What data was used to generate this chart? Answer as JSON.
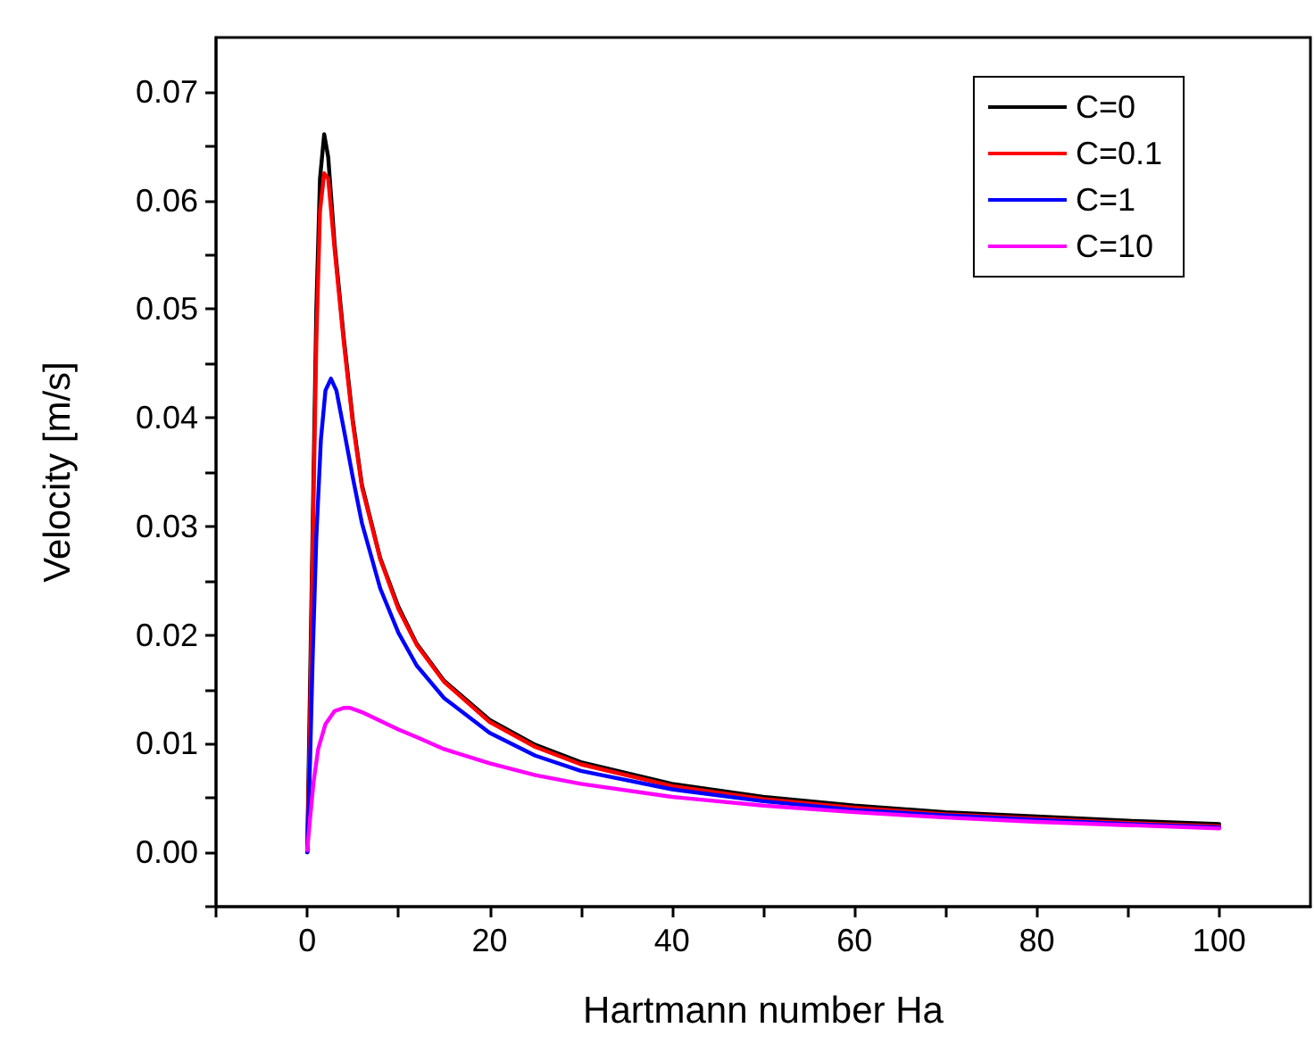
{
  "chart_data": {
    "type": "line",
    "xlabel": "Hartmann number Ha",
    "ylabel": "Velocity [m/s]",
    "xlim": [
      -10,
      110
    ],
    "ylim": [
      -0.005,
      0.075
    ],
    "xticks": [
      {
        "value": -10,
        "label": null
      },
      0,
      {
        "value": 10,
        "label": null
      },
      20,
      {
        "value": 30,
        "label": null
      },
      40,
      {
        "value": 50,
        "label": null
      },
      60,
      {
        "value": 70,
        "label": null
      },
      80,
      {
        "value": 90,
        "label": null
      },
      100
    ],
    "yticks": [
      {
        "value": -0.005,
        "label": null
      },
      {
        "value": 0,
        "label": "0.00"
      },
      {
        "value": 0.005,
        "label": null
      },
      {
        "value": 0.01,
        "label": "0.01"
      },
      {
        "value": 0.015,
        "label": null
      },
      {
        "value": 0.02,
        "label": "0.02"
      },
      {
        "value": 0.025,
        "label": null
      },
      {
        "value": 0.03,
        "label": "0.03"
      },
      {
        "value": 0.035,
        "label": null
      },
      {
        "value": 0.04,
        "label": "0.04"
      },
      {
        "value": 0.045,
        "label": null
      },
      {
        "value": 0.05,
        "label": "0.05"
      },
      {
        "value": 0.055,
        "label": null
      },
      {
        "value": 0.06,
        "label": "0.06"
      },
      {
        "value": 0.065,
        "label": null
      },
      {
        "value": 0.07,
        "label": "0.07"
      }
    ],
    "grid": false,
    "legend": "top right",
    "marker": "none",
    "line_style": "solid",
    "series": [
      {
        "name": "C=0",
        "color": "#000000",
        "x": [
          0,
          0.6,
          1,
          1.4,
          1.86,
          2.3,
          3,
          4,
          5,
          6,
          8,
          10,
          12,
          15,
          20,
          25,
          30,
          40,
          50,
          60,
          70,
          80,
          90,
          100
        ],
        "values": [
          0,
          0.03,
          0.05,
          0.062,
          0.0661,
          0.064,
          0.056,
          0.0474,
          0.0398,
          0.0338,
          0.0271,
          0.0226,
          0.0192,
          0.0158,
          0.0122,
          0.0099,
          0.0083,
          0.0063,
          0.0051,
          0.0043,
          0.0037,
          0.0033,
          0.0029,
          0.0026
        ]
      },
      {
        "name": "C=0.1",
        "color": "#ff0000",
        "x": [
          0,
          0.3,
          0.6,
          1,
          1.4,
          1.86,
          2.3,
          3,
          4,
          5,
          6,
          8,
          10,
          12,
          15,
          20,
          25,
          30,
          40,
          50,
          60,
          70,
          80,
          90,
          100
        ],
        "values": [
          0,
          0.012,
          0.028,
          0.047,
          0.059,
          0.0625,
          0.062,
          0.0555,
          0.047,
          0.0395,
          0.0336,
          0.027,
          0.0224,
          0.0191,
          0.0157,
          0.012,
          0.0097,
          0.0081,
          0.0061,
          0.0049,
          0.0041,
          0.0035,
          0.0031,
          0.0027,
          0.0024
        ]
      },
      {
        "name": "C=1",
        "color": "#0000ff",
        "x": [
          0,
          0.3,
          0.6,
          1,
          1.5,
          2,
          2.6,
          3.2,
          4,
          5,
          6,
          8,
          10,
          12,
          15,
          20,
          25,
          30,
          40,
          50,
          60,
          70,
          80,
          90,
          100
        ],
        "values": [
          0,
          0.008,
          0.018,
          0.029,
          0.038,
          0.0425,
          0.0436,
          0.0425,
          0.039,
          0.0345,
          0.0303,
          0.0243,
          0.0202,
          0.0172,
          0.0142,
          0.011,
          0.0089,
          0.0075,
          0.0058,
          0.0047,
          0.0039,
          0.0034,
          0.003,
          0.0026,
          0.0023
        ]
      },
      {
        "name": "C=10",
        "color": "#ff00ff",
        "x": [
          0,
          0.3,
          0.7,
          1.2,
          2,
          3,
          4,
          4.7,
          6,
          8,
          10,
          12,
          15,
          20,
          25,
          30,
          40,
          50,
          60,
          70,
          80,
          90,
          100
        ],
        "values": [
          0.0002,
          0.003,
          0.0065,
          0.0095,
          0.0118,
          0.013,
          0.0133,
          0.0133,
          0.0129,
          0.0121,
          0.0113,
          0.0106,
          0.0095,
          0.0082,
          0.0071,
          0.0063,
          0.0051,
          0.0043,
          0.0037,
          0.0032,
          0.0028,
          0.0025,
          0.0022
        ]
      }
    ]
  }
}
